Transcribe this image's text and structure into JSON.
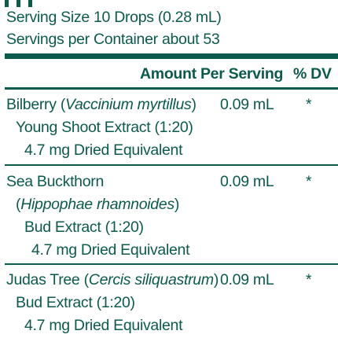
{
  "serving": {
    "size": "Serving Size 10 Drops (0.28 mL)",
    "per_container": "Servings per Container about 53"
  },
  "header": {
    "amount": "Amount Per Serving",
    "dv": "% DV"
  },
  "rows": [
    {
      "name": "Bilberry (",
      "latin": "Vaccinium myrtillus",
      "close": ")",
      "line2": "Young Shoot Extract (1:20)",
      "line3": "4.7 mg Dried Equivalent",
      "amount": "0.09 mL",
      "dv": "*"
    },
    {
      "name": "Sea Buckthorn",
      "latin_open": "(",
      "latin": "Hippophae rhamnoides",
      "close": ")",
      "line3": "Bud Extract (1:20)",
      "line4": "4.7 mg Dried Equivalent",
      "amount": "0.09 mL",
      "dv": "*"
    },
    {
      "name": "Judas Tree (",
      "latin": "Cercis siliquastrum",
      "close": ")",
      "line2": "Bud Extract (1:20)",
      "line3": "4.7 mg Dried Equivalent",
      "amount": "0.09 mL",
      "dv": "*"
    }
  ],
  "colors": {
    "ink": "#0c5a4c",
    "background": "#ffffff"
  }
}
